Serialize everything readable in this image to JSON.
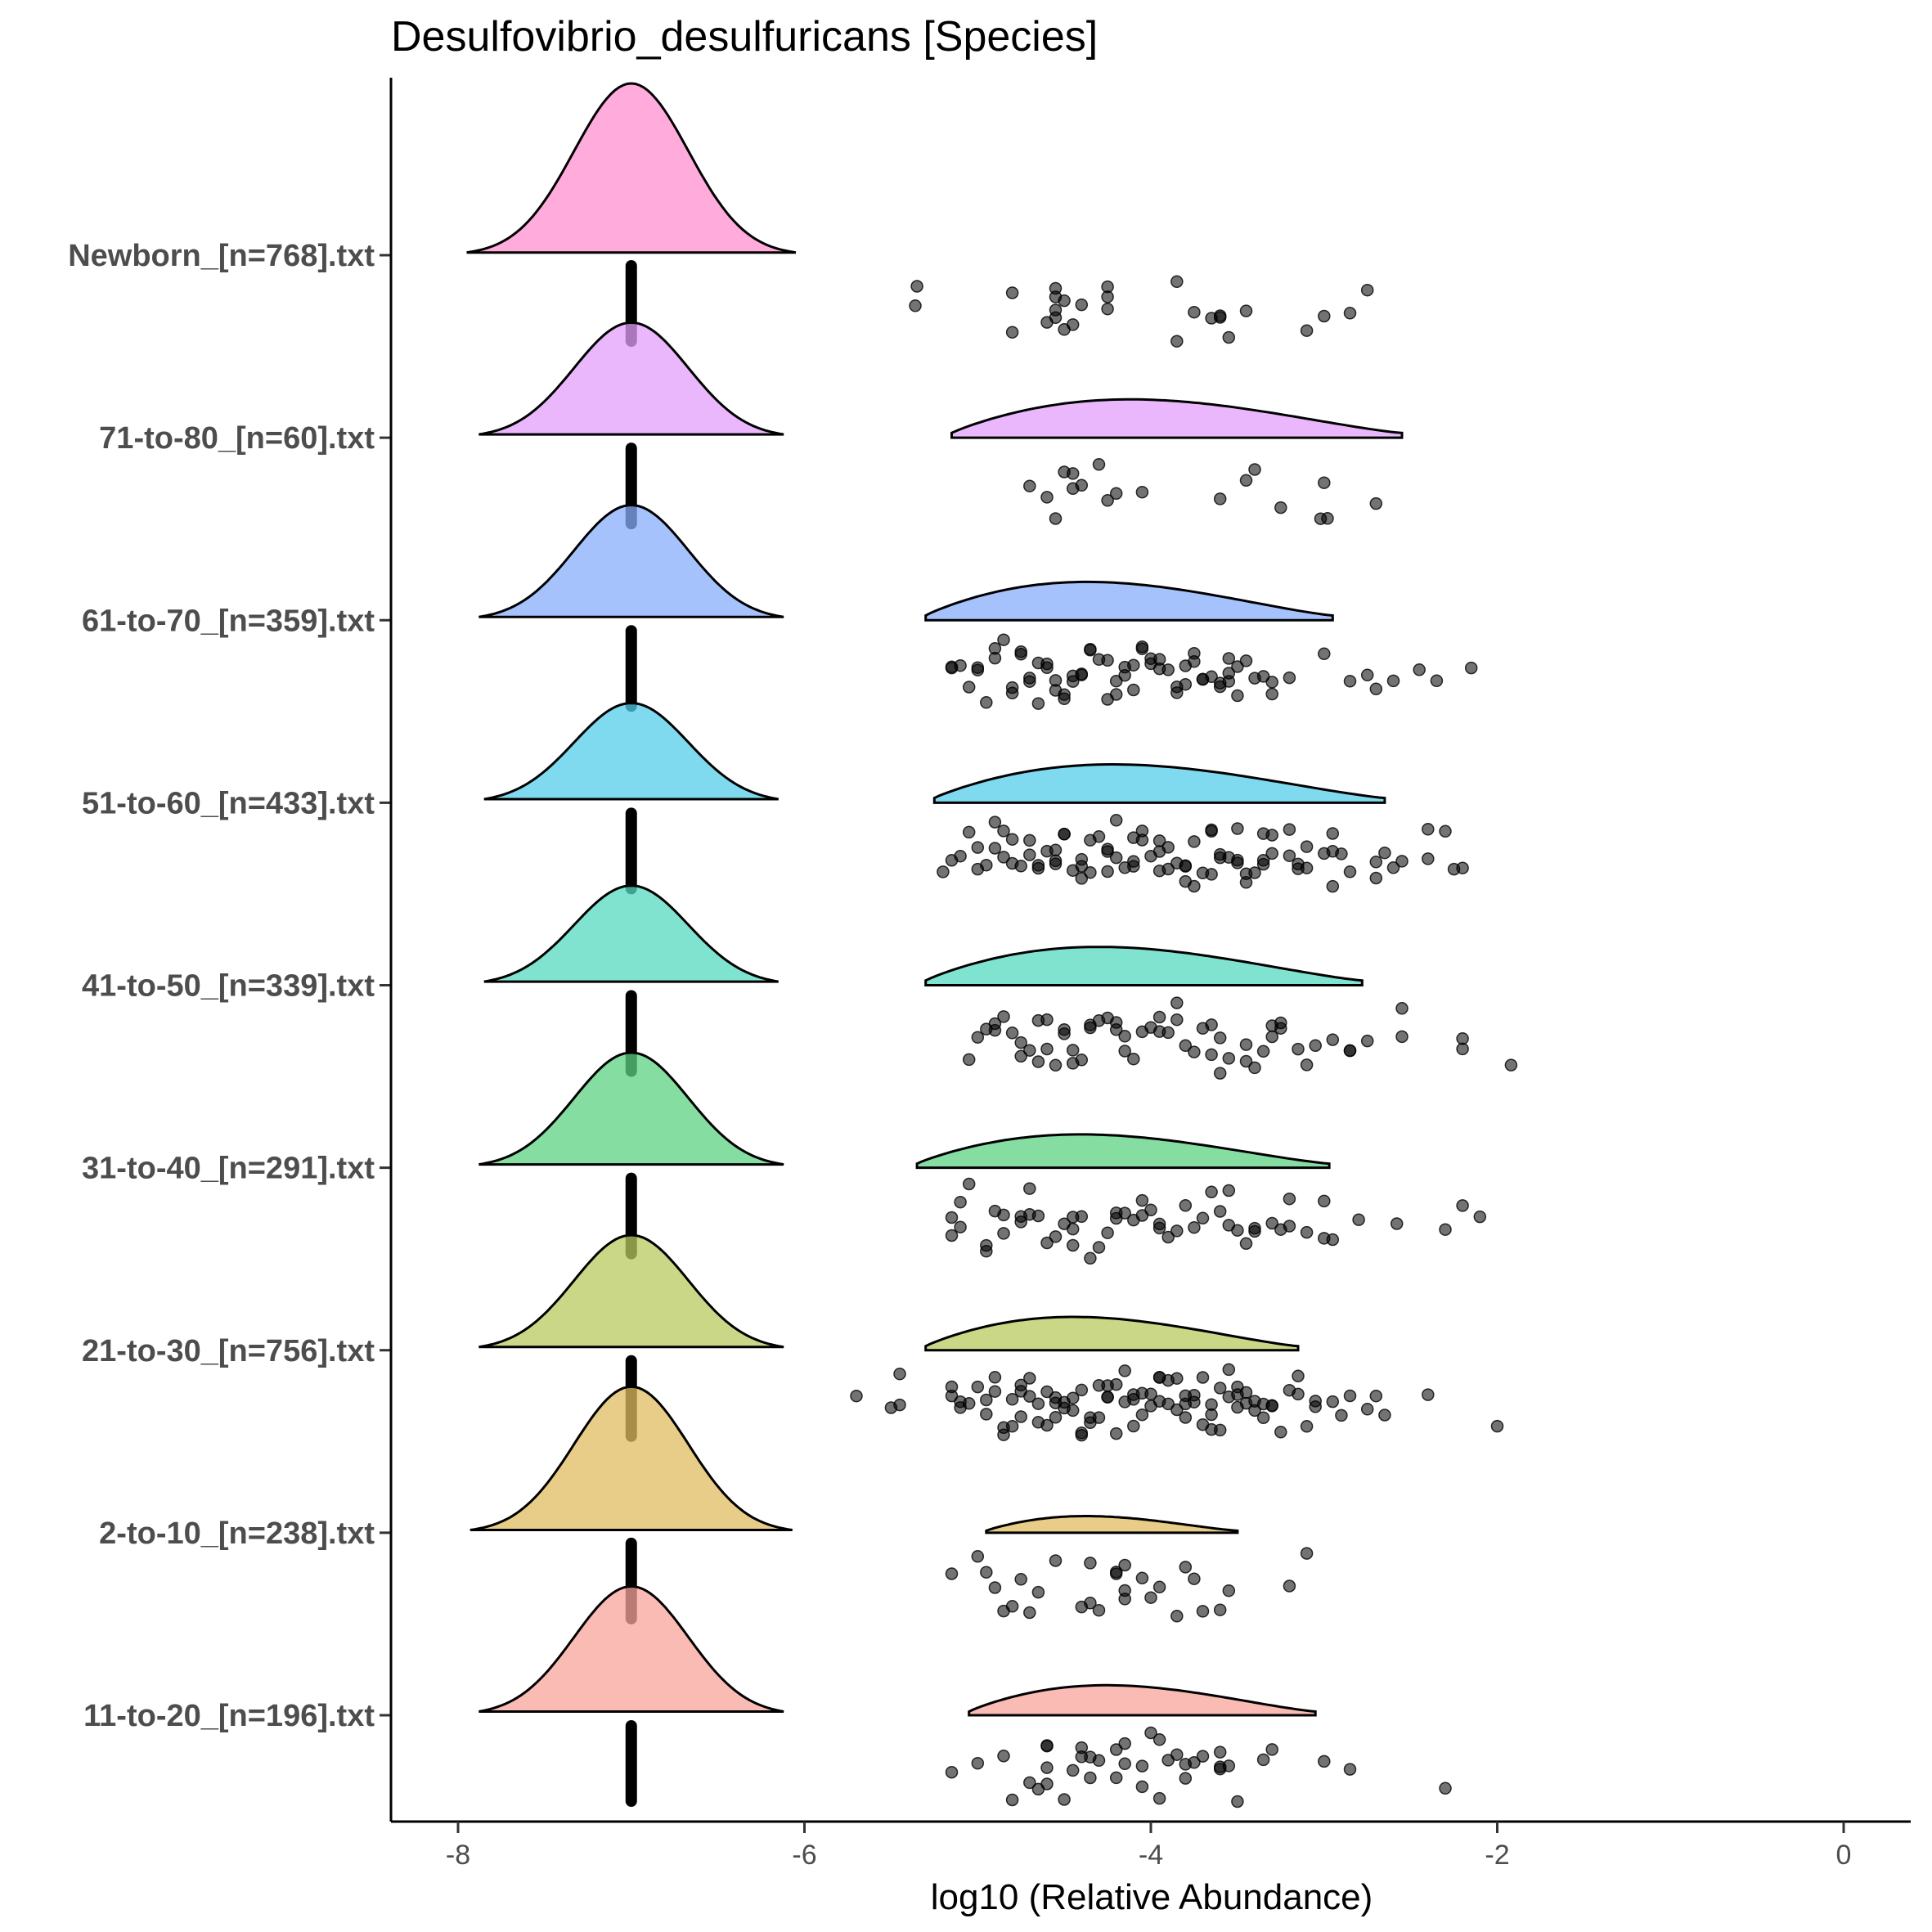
{
  "chart_data": {
    "type": "raincloud",
    "title": "Desulfovibrio_desulfuricans [Species]",
    "xlabel": "log10 (Relative Abundance)",
    "ylabel": "",
    "xlim": [
      -8.4,
      0.4
    ],
    "xticks": [
      -8,
      -6,
      -4,
      -2,
      0
    ],
    "xtick_labels": [
      "-8",
      "-6",
      "-4",
      "-2",
      "0"
    ],
    "zero_value": -7.0,
    "series": [
      {
        "name": "Newborn_[n=768].txt",
        "color": "#ff8fcf",
        "zero_density": {
          "mu": -7.0,
          "sd": 0.33,
          "range": [
            -7.95,
            -6.05
          ],
          "peak": 1.0
        },
        "nonzero_density": null,
        "points": [
          -4.8,
          -4.55,
          -4.45,
          -3.45,
          -3.0,
          -4.8,
          -4.55,
          -4.5,
          -4.25,
          -3.6,
          -3.1,
          -2.75,
          -4.6,
          -4.55,
          -4.4,
          -4.25,
          -3.85,
          -3.65,
          -3.55,
          -4.55,
          -4.5,
          -4.25,
          -3.75,
          -3.6,
          -5.35,
          -5.36,
          -3.85,
          -2.85
        ]
      },
      {
        "name": "71-to-80_[n=60].txt",
        "color": "#e39ffc",
        "zero_density": {
          "mu": -7.0,
          "sd": 0.33,
          "range": [
            -7.88,
            -6.12
          ],
          "peak": 0.67
        },
        "nonzero_density": {
          "range": [
            -5.15,
            -2.55
          ],
          "peak": 0.23
        },
        "points": [
          -4.5,
          -4.45,
          -4.55,
          -3.4,
          -4.4,
          -4.3,
          -3.0,
          -2.7,
          -4.2,
          -4.05,
          -2.98,
          -4.45,
          -4.6,
          -4.7,
          -4.25,
          -3.6,
          -3.45,
          -3.25,
          -3.02
        ]
      },
      {
        "name": "61-to-70_[n=359].txt",
        "color": "#88aefc",
        "zero_density": {
          "mu": -7.0,
          "sd": 0.33,
          "range": [
            -7.88,
            -6.12
          ],
          "peak": 0.67
        },
        "nonzero_density": {
          "range": [
            -5.3,
            -2.95
          ],
          "peak": 0.23
        },
        "points": [
          -4.9,
          -4.7,
          -4.55,
          -4.4,
          -4.2,
          -4.1,
          -3.8,
          -3.6,
          -3.45,
          -3.2,
          -2.45,
          -5.15,
          -5.0,
          -4.75,
          -4.6,
          -4.5,
          -4.35,
          -4.15,
          -4.05,
          -3.9,
          -3.7,
          -3.55,
          -3.4,
          -3.0,
          -2.6,
          -2.7,
          -5.1,
          -4.9,
          -4.8,
          -4.65,
          -4.45,
          -4.25,
          -4.0,
          -3.85,
          -3.65,
          -3.5,
          -3.3,
          -2.85,
          -5.05,
          -4.85,
          -4.7,
          -4.5,
          -4.3,
          -4.1,
          -3.95,
          -3.75,
          -3.5,
          -3.35,
          -2.75,
          -2.35,
          -5.0,
          -4.8,
          -4.6,
          -4.4,
          -4.2,
          -4.05,
          -3.85,
          -3.7,
          -3.55,
          -3.3,
          -2.15,
          -5.15,
          -4.95,
          -4.75,
          -4.55,
          -4.35,
          -4.15,
          -3.95,
          -3.75,
          -3.6,
          -4.65,
          -4.45,
          -4.25,
          -4.0,
          -3.8,
          -3.55
        ]
      },
      {
        "name": "51-to-60_[n=433].txt",
        "color": "#54cdeb",
        "zero_density": {
          "mu": -7.0,
          "sd": 0.33,
          "range": [
            -7.85,
            -6.15
          ],
          "peak": 0.58
        },
        "nonzero_density": {
          "range": [
            -5.25,
            -2.65
          ],
          "peak": 0.23
        },
        "points": [
          -5.05,
          -4.85,
          -4.7,
          -4.55,
          -4.4,
          -4.25,
          -4.1,
          -3.95,
          -3.8,
          -3.65,
          -3.5,
          -3.35,
          -3.15,
          -2.9,
          -2.7,
          -2.3,
          -5.15,
          -4.95,
          -4.8,
          -4.6,
          -4.45,
          -4.3,
          -4.15,
          -4.0,
          -3.85,
          -3.7,
          -3.55,
          -3.4,
          -3.2,
          -2.95,
          -2.6,
          -2.4,
          -5.2,
          -5.0,
          -4.85,
          -4.65,
          -4.5,
          -4.35,
          -4.2,
          -4.05,
          -3.9,
          -3.75,
          -3.6,
          -3.45,
          -3.3,
          -3.1,
          -2.85,
          -2.55,
          -5.1,
          -4.9,
          -4.75,
          -4.55,
          -4.4,
          -4.25,
          -4.1,
          -3.95,
          -3.8,
          -3.65,
          -3.5,
          -3.35,
          -3.2,
          -3.0,
          -2.7,
          -2.4,
          -2.2,
          -5.0,
          -4.8,
          -4.65,
          -4.5,
          -4.35,
          -4.2,
          -4.05,
          -3.9,
          -3.75,
          -3.6,
          -3.45,
          -3.3,
          -3.1,
          -2.95,
          -2.65,
          -2.25,
          -4.9,
          -4.7,
          -4.55,
          -4.4,
          -4.25,
          -4.1,
          -3.95,
          -3.8,
          -3.65,
          -3.5,
          -3.35,
          -3.15,
          -2.95
        ]
      },
      {
        "name": "41-to-50_[n=339].txt",
        "color": "#56d9c0",
        "zero_density": {
          "mu": -7.0,
          "sd": 0.33,
          "range": [
            -7.85,
            -6.15
          ],
          "peak": 0.58
        },
        "nonzero_density": {
          "range": [
            -5.3,
            -2.78
          ],
          "peak": 0.23
        },
        "points": [
          -4.65,
          -4.45,
          -4.2,
          -3.95,
          -3.6,
          -3.3,
          -1.92,
          -4.9,
          -4.75,
          -4.55,
          -4.35,
          -4.15,
          -3.9,
          -3.7,
          -3.45,
          -3.25,
          -3.05,
          -5.05,
          -4.85,
          -4.65,
          -4.5,
          -4.3,
          -4.1,
          -3.85,
          -3.65,
          -3.4,
          -3.15,
          -2.85,
          -2.55,
          -4.95,
          -4.75,
          -4.6,
          -4.4,
          -4.2,
          -4.0,
          -3.8,
          -3.6,
          -3.35,
          -3.1,
          -2.2,
          -5.0,
          -4.8,
          -4.6,
          -4.45,
          -4.25,
          -4.05,
          -3.85,
          -3.65,
          -3.45,
          -3.25,
          -2.95,
          -2.75,
          -4.9,
          -4.7,
          -4.5,
          -4.35,
          -4.15,
          -3.95,
          -3.75,
          -3.55,
          -3.3,
          -2.85,
          -2.55,
          -2.2
        ]
      },
      {
        "name": "31-to-40_[n=291].txt",
        "color": "#5cd181",
        "zero_density": {
          "mu": -7.0,
          "sd": 0.33,
          "range": [
            -7.88,
            -6.12
          ],
          "peak": 0.67
        },
        "nonzero_density": {
          "range": [
            -5.35,
            -2.97
          ],
          "peak": 0.2
        },
        "points": [
          -4.75,
          -4.45,
          -4.2,
          -3.95,
          -3.55,
          -3.3,
          -3.0,
          -2.8,
          -2.58,
          -5.05,
          -4.85,
          -4.6,
          -4.4,
          -4.15,
          -3.95,
          -3.7,
          -3.45,
          -3.2,
          -5.15,
          -4.95,
          -4.7,
          -4.5,
          -4.3,
          -4.05,
          -3.85,
          -3.6,
          -3.4,
          -2.3,
          -5.1,
          -4.9,
          -4.7,
          -4.45,
          -4.25,
          -4.05,
          -3.8,
          -3.55,
          -3.25,
          -2.95,
          -2.2,
          -5.15,
          -4.95,
          -4.75,
          -4.55,
          -4.35,
          -4.1,
          -3.9,
          -3.65,
          -3.4,
          -3.1,
          -2.1,
          -5.1,
          -4.85,
          -4.65,
          -4.45,
          -4.2,
          -4.0,
          -3.75,
          -3.5,
          -3.2,
          -3.0
        ]
      },
      {
        "name": "21-to-30_[n=756].txt",
        "color": "#b8c95e",
        "zero_density": {
          "mu": -7.0,
          "sd": 0.33,
          "range": [
            -7.88,
            -6.12
          ],
          "peak": 0.67
        },
        "nonzero_density": {
          "range": [
            -5.3,
            -3.15
          ],
          "peak": 0.2
        },
        "points": [
          -5.15,
          -4.95,
          -4.8,
          -4.65,
          -4.5,
          -4.35,
          -4.2,
          -4.05,
          -3.9,
          -3.75,
          -3.6,
          -3.45,
          -3.3,
          -3.05,
          -5.7,
          -5.45,
          -5.1,
          -4.9,
          -4.75,
          -4.6,
          -4.45,
          -4.3,
          -4.15,
          -4.0,
          -3.85,
          -3.7,
          -3.55,
          -3.4,
          -3.2,
          -2.0,
          -5.45,
          -5.05,
          -4.85,
          -4.7,
          -4.55,
          -4.4,
          -4.25,
          -4.1,
          -3.95,
          -3.8,
          -3.65,
          -3.5,
          -3.35,
          -3.15,
          -2.95,
          -2.75,
          -5.1,
          -4.9,
          -4.75,
          -4.6,
          -4.45,
          -4.3,
          -4.15,
          -4.0,
          -3.85,
          -3.7,
          -3.55,
          -3.4,
          -3.25,
          -3.05,
          -2.85,
          -5.5,
          -5.0,
          -4.85,
          -4.7,
          -4.55,
          -4.4,
          -4.25,
          -4.1,
          -3.95,
          -3.8,
          -3.65,
          -3.5,
          -3.35,
          -3.1,
          -2.7,
          -2.4,
          -5.15,
          -4.95,
          -4.8,
          -4.65,
          -4.5,
          -4.35,
          -4.2,
          -4.05,
          -3.9,
          -3.75,
          -3.6,
          -3.45,
          -3.3,
          -3.15,
          -2.9,
          -2.65,
          -4.75,
          -4.55,
          -4.4,
          -4.25,
          -4.1,
          -3.95,
          -3.8,
          -3.65,
          -3.5
        ]
      },
      {
        "name": "2-to-10_[n=238].txt",
        "color": "#e0bc60",
        "zero_density": {
          "mu": -7.0,
          "sd": 0.33,
          "range": [
            -7.93,
            -6.07
          ],
          "peak": 0.85
        },
        "nonzero_density": {
          "range": [
            -4.95,
            -3.5
          ],
          "peak": 0.1
        },
        "points": [
          -4.8,
          -4.15,
          -4.9,
          -4.65,
          -4.15,
          -3.95,
          -3.1,
          -4.95,
          -4.7,
          -4.35,
          -4.2,
          -3.85,
          -5.15,
          -4.85,
          -4.55,
          -4.35,
          -4.15,
          -3.8,
          -3.55,
          -5.0,
          -4.75,
          -4.4,
          -4.2,
          -4.0,
          -3.7,
          -3.2,
          -4.3,
          -4.05,
          -3.75,
          -3.6
        ]
      },
      {
        "name": "11-to-20_[n=196].txt",
        "color": "#f8a49c",
        "zero_density": {
          "mu": -7.0,
          "sd": 0.33,
          "range": [
            -7.88,
            -6.12
          ],
          "peak": 0.75
        },
        "nonzero_density": {
          "range": [
            -5.05,
            -3.05
          ],
          "peak": 0.18
        },
        "points": [
          -5.15,
          -5.0,
          -4.6,
          -4.4,
          -4.2,
          -3.95,
          -3.7,
          -4.7,
          -4.5,
          -4.3,
          -4.05,
          -3.85,
          -3.6,
          -4.8,
          -4.6,
          -4.35,
          -4.15,
          -3.9,
          -3.6,
          -3.3,
          -2.85,
          -4.65,
          -4.45,
          -4.2,
          -4.0,
          -3.8,
          -3.55,
          -3.35,
          -4.85,
          -4.6,
          -4.4,
          -4.15,
          -3.95,
          -3.75,
          -3.5,
          -3.0,
          -2.3,
          -4.6,
          -4.35,
          -4.05,
          -3.8,
          -3.6
        ]
      }
    ]
  }
}
